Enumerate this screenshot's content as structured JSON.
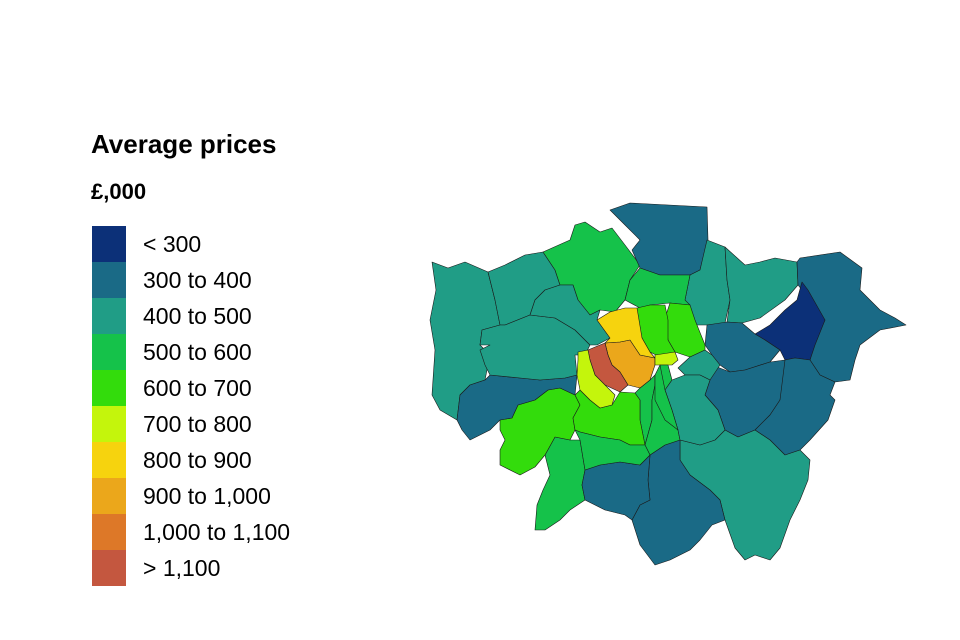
{
  "legend": {
    "title": "Average prices",
    "unit": "£,000",
    "classes": [
      {
        "label": "< 300",
        "color": "#0c3078"
      },
      {
        "label": "300 to 400",
        "color": "#1a6a86"
      },
      {
        "label": "400 to 500",
        "color": "#209d86"
      },
      {
        "label": "500 to 600",
        "color": "#15c24a"
      },
      {
        "label": "600 to 700",
        "color": "#33dc0c"
      },
      {
        "label": "700 to 800",
        "color": "#c4f50c"
      },
      {
        "label": "800 to 900",
        "color": "#f6d30e"
      },
      {
        "label": "900 to 1,000",
        "color": "#eba71b"
      },
      {
        "label": "1,000 to 1,100",
        "color": "#dd7828"
      },
      {
        "label": "> 1,100",
        "color": "#c4573f"
      }
    ]
  },
  "map_data": {
    "region_classes": [
      2,
      2,
      3,
      1,
      2,
      2,
      1,
      0,
      1,
      1,
      1,
      2,
      1,
      3,
      1,
      4,
      1,
      2,
      2,
      3,
      4,
      4,
      3,
      2,
      4,
      7,
      9,
      5,
      6,
      5,
      3,
      3,
      2,
      3
    ]
  }
}
